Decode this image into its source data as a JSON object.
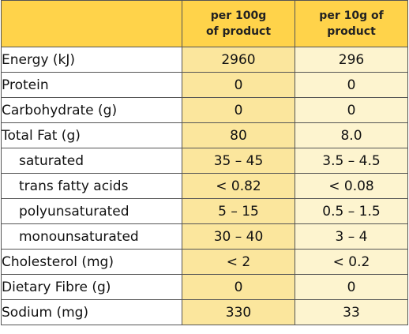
{
  "columns": {
    "per100_line1": "per 100g",
    "per100_line2": "of product",
    "per10_line1": "per 10g of",
    "per10_line2": "product"
  },
  "rows": [
    {
      "label": "Energy (kJ)",
      "per100": "2960",
      "per10": "296",
      "indent": false
    },
    {
      "label": "Protein",
      "per100": "0",
      "per10": "0",
      "indent": false
    },
    {
      "label": "Carbohydrate (g)",
      "per100": "0",
      "per10": "0",
      "indent": false
    },
    {
      "label": "Total Fat (g)",
      "per100": "80",
      "per10": "8.0",
      "indent": false
    },
    {
      "label": "saturated",
      "per100": "35 – 45",
      "per10": "3.5 – 4.5",
      "indent": true
    },
    {
      "label": "trans fatty acids",
      "per100": "< 0.82",
      "per10": "< 0.08",
      "indent": true
    },
    {
      "label": "polyunsaturated",
      "per100": "5 – 15",
      "per10": "0.5 – 1.5",
      "indent": true
    },
    {
      "label": "monounsaturated",
      "per100": "30 – 40",
      "per10": "3 – 4",
      "indent": true
    },
    {
      "label": "Cholesterol (mg)",
      "per100": "< 2",
      "per10": "< 0.2",
      "indent": false
    },
    {
      "label": "Dietary Fibre (g)",
      "per100": "0",
      "per10": "0",
      "indent": false
    },
    {
      "label": "Sodium (mg)",
      "per100": "330",
      "per10": "33",
      "indent": false
    }
  ],
  "colors": {
    "header": "#ffd34a",
    "per100_column": "#fbe69d",
    "per10_column": "#fdf4cf",
    "border": "#555555"
  }
}
